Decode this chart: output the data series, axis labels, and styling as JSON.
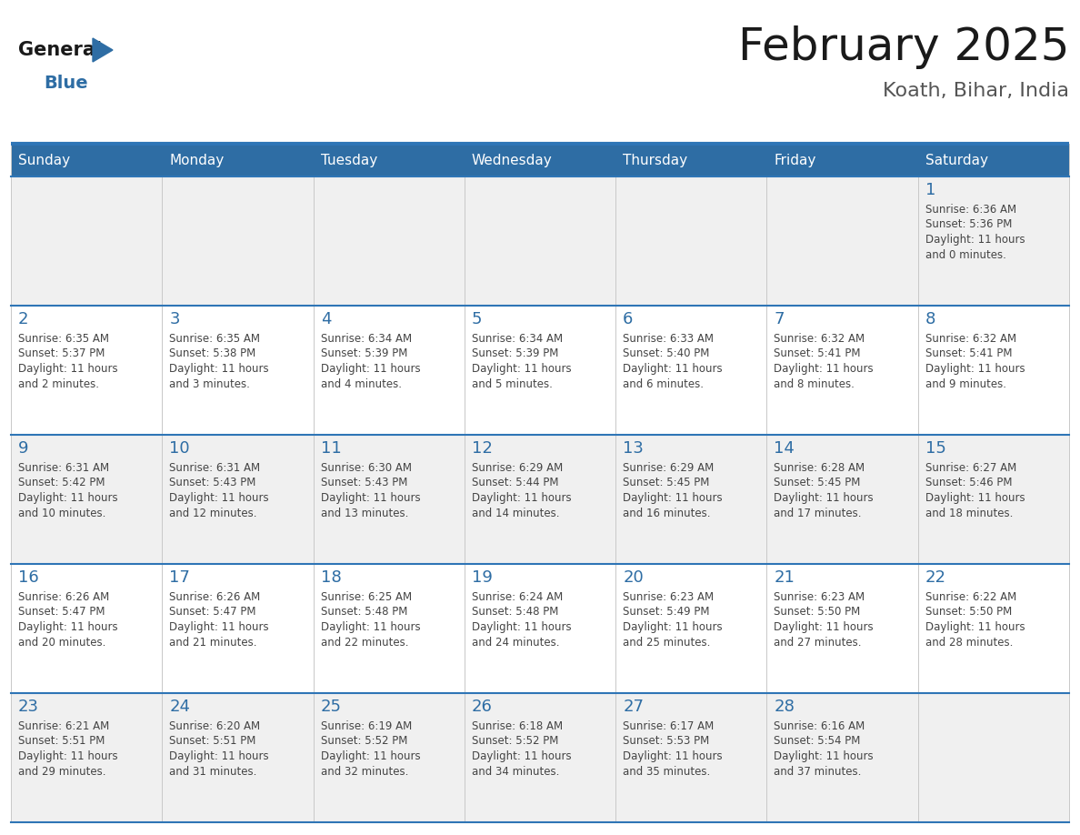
{
  "title": "February 2025",
  "subtitle": "Koath, Bihar, India",
  "header_bg": "#2E6DA4",
  "header_text_color": "#FFFFFF",
  "day_names": [
    "Sunday",
    "Monday",
    "Tuesday",
    "Wednesday",
    "Thursday",
    "Friday",
    "Saturday"
  ],
  "cell_bg_light": "#F0F0F0",
  "cell_bg_white": "#FFFFFF",
  "date_color": "#2E6DA4",
  "text_color": "#444444",
  "line_color": "#2E75B6",
  "calendar": [
    [
      null,
      null,
      null,
      null,
      null,
      null,
      1
    ],
    [
      2,
      3,
      4,
      5,
      6,
      7,
      8
    ],
    [
      9,
      10,
      11,
      12,
      13,
      14,
      15
    ],
    [
      16,
      17,
      18,
      19,
      20,
      21,
      22
    ],
    [
      23,
      24,
      25,
      26,
      27,
      28,
      null
    ]
  ],
  "sunrise": {
    "1": "6:36 AM",
    "2": "6:35 AM",
    "3": "6:35 AM",
    "4": "6:34 AM",
    "5": "6:34 AM",
    "6": "6:33 AM",
    "7": "6:32 AM",
    "8": "6:32 AM",
    "9": "6:31 AM",
    "10": "6:31 AM",
    "11": "6:30 AM",
    "12": "6:29 AM",
    "13": "6:29 AM",
    "14": "6:28 AM",
    "15": "6:27 AM",
    "16": "6:26 AM",
    "17": "6:26 AM",
    "18": "6:25 AM",
    "19": "6:24 AM",
    "20": "6:23 AM",
    "21": "6:23 AM",
    "22": "6:22 AM",
    "23": "6:21 AM",
    "24": "6:20 AM",
    "25": "6:19 AM",
    "26": "6:18 AM",
    "27": "6:17 AM",
    "28": "6:16 AM"
  },
  "sunset": {
    "1": "5:36 PM",
    "2": "5:37 PM",
    "3": "5:38 PM",
    "4": "5:39 PM",
    "5": "5:39 PM",
    "6": "5:40 PM",
    "7": "5:41 PM",
    "8": "5:41 PM",
    "9": "5:42 PM",
    "10": "5:43 PM",
    "11": "5:43 PM",
    "12": "5:44 PM",
    "13": "5:45 PM",
    "14": "5:45 PM",
    "15": "5:46 PM",
    "16": "5:47 PM",
    "17": "5:47 PM",
    "18": "5:48 PM",
    "19": "5:48 PM",
    "20": "5:49 PM",
    "21": "5:50 PM",
    "22": "5:50 PM",
    "23": "5:51 PM",
    "24": "5:51 PM",
    "25": "5:52 PM",
    "26": "5:52 PM",
    "27": "5:53 PM",
    "28": "5:54 PM"
  },
  "daylight_hours": {
    "1": 11,
    "2": 11,
    "3": 11,
    "4": 11,
    "5": 11,
    "6": 11,
    "7": 11,
    "8": 11,
    "9": 11,
    "10": 11,
    "11": 11,
    "12": 11,
    "13": 11,
    "14": 11,
    "15": 11,
    "16": 11,
    "17": 11,
    "18": 11,
    "19": 11,
    "20": 11,
    "21": 11,
    "22": 11,
    "23": 11,
    "24": 11,
    "25": 11,
    "26": 11,
    "27": 11,
    "28": 11
  },
  "daylight_minutes": {
    "1": 0,
    "2": 2,
    "3": 3,
    "4": 4,
    "5": 5,
    "6": 6,
    "7": 8,
    "8": 9,
    "9": 10,
    "10": 12,
    "11": 13,
    "12": 14,
    "13": 16,
    "14": 17,
    "15": 18,
    "16": 20,
    "17": 21,
    "18": 22,
    "19": 24,
    "20": 25,
    "21": 27,
    "22": 28,
    "23": 29,
    "24": 31,
    "25": 32,
    "26": 34,
    "27": 35,
    "28": 37
  },
  "logo_general_color": "#1a1a1a",
  "logo_blue_color": "#2E6DA4",
  "logo_triangle_color": "#2E6DA4",
  "figwidth": 11.88,
  "figheight": 9.18,
  "dpi": 100
}
